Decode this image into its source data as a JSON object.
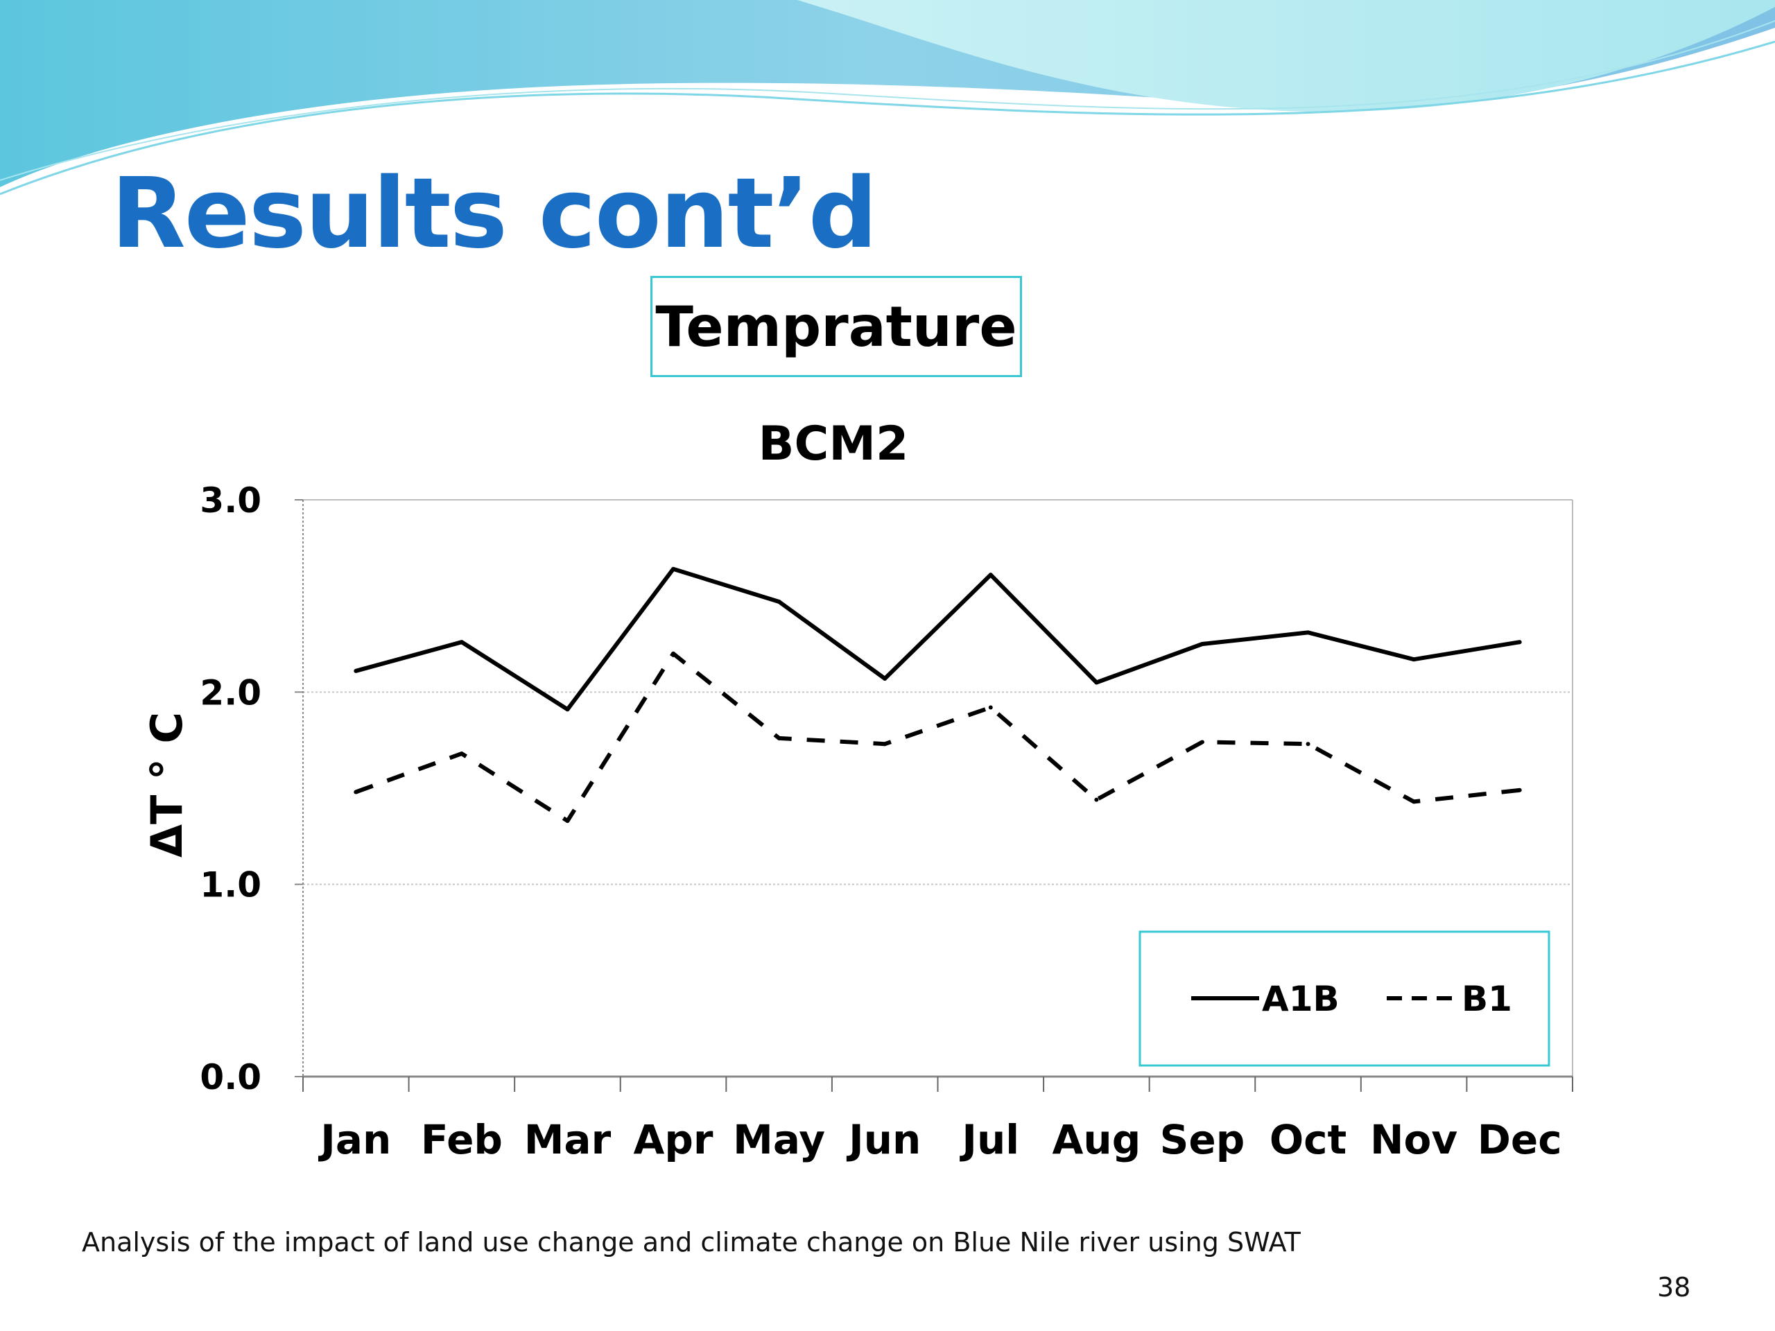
{
  "slide": {
    "title": "Results cont’d",
    "topic": "Temprature",
    "footer": "Analysis of the impact of land use change and climate change on Blue Nile river using SWAT",
    "page_number": "38"
  },
  "colors": {
    "title": "#1a6fc4",
    "accent_border": "#37c8d4",
    "banner_light": "#b9ecf2",
    "banner_mid": "#6fd3e2",
    "banner_dark": "#4a9fd0"
  },
  "chart_data": {
    "type": "line",
    "title": "BCM2",
    "xlabel": "",
    "ylabel": "ΔT ° C",
    "categories": [
      "Jan",
      "Feb",
      "Mar",
      "Apr",
      "May",
      "Jun",
      "Jul",
      "Aug",
      "Sep",
      "Oct",
      "Nov",
      "Dec"
    ],
    "ylim": [
      0,
      3
    ],
    "yticks": [
      "0.0",
      "1.0",
      "2.0",
      "3.0"
    ],
    "ytick_values": [
      0,
      1,
      2,
      3
    ],
    "grid": "horizontal",
    "legend": "bottom-right",
    "series": [
      {
        "name": "A1B",
        "style": "solid",
        "color": "#000000",
        "values": [
          2.11,
          2.26,
          1.91,
          2.64,
          2.47,
          2.07,
          2.61,
          2.05,
          2.25,
          2.31,
          2.17,
          2.26
        ]
      },
      {
        "name": "B1",
        "style": "dashed",
        "color": "#000000",
        "values": [
          1.48,
          1.68,
          1.33,
          2.2,
          1.76,
          1.73,
          1.92,
          1.44,
          1.74,
          1.73,
          1.43,
          1.49
        ]
      }
    ]
  }
}
